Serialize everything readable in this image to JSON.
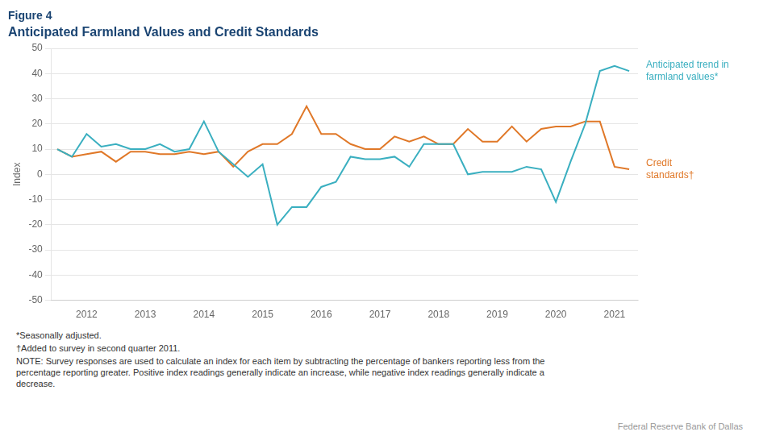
{
  "chart_data": {
    "type": "line",
    "title": "Figure 4",
    "subtitle": "Anticipated Farmland Values and Credit Standards",
    "ylabel": "Index",
    "x": [
      2011.5,
      2011.75,
      2012.0,
      2012.25,
      2012.5,
      2012.75,
      2013.0,
      2013.25,
      2013.5,
      2013.75,
      2014.0,
      2014.25,
      2014.5,
      2014.75,
      2015.0,
      2015.25,
      2015.5,
      2015.75,
      2016.0,
      2016.25,
      2016.5,
      2016.75,
      2017.0,
      2017.25,
      2017.5,
      2017.75,
      2018.0,
      2018.25,
      2018.5,
      2018.75,
      2019.0,
      2019.25,
      2019.5,
      2019.75,
      2020.0,
      2020.25,
      2020.5,
      2020.75,
      2021.0,
      2021.25
    ],
    "series": [
      {
        "color": "#3aafc0",
        "values": [
          10,
          7,
          16,
          11,
          12,
          10,
          10,
          12,
          9,
          10,
          21,
          9,
          4,
          -1,
          4,
          -20,
          -13,
          -13,
          -5,
          -3,
          7,
          6,
          6,
          7,
          3,
          12,
          12,
          12,
          0,
          1,
          1,
          1,
          3,
          2,
          -11,
          5,
          20,
          41,
          43,
          41
        ]
      },
      {
        "color": "#e07828",
        "values": [
          10,
          7,
          8,
          9,
          5,
          9,
          9,
          8,
          8,
          9,
          8,
          9,
          3,
          9,
          12,
          12,
          16,
          27,
          16,
          16,
          12,
          10,
          10,
          15,
          13,
          15,
          12,
          12,
          18,
          13,
          13,
          19,
          13,
          18,
          19,
          19,
          21,
          21,
          3,
          2
        ]
      }
    ],
    "annotations": [
      {
        "text": "Anticipated trend in\nfarmland values*",
        "color": "#3aafc0"
      },
      {
        "text": "Credit\nstandards†",
        "color": "#e07828"
      }
    ],
    "xlim": [
      2011.4,
      2021.4
    ],
    "xticks": [
      2012,
      2013,
      2014,
      2015,
      2016,
      2017,
      2018,
      2019,
      2020,
      2021
    ],
    "ylim": [
      -50,
      50
    ],
    "yticks": [
      -50,
      -40,
      -30,
      -20,
      -10,
      0,
      10,
      20,
      30,
      40,
      50
    ],
    "grid": true,
    "footnotes": [
      "*Seasonally adjusted.",
      "†Added to survey in second quarter 2011.",
      "NOTE: Survey responses are used to calculate an index for each item by subtracting the percentage of bankers reporting less from the\npercentage reporting greater. Positive index readings generally indicate an increase, while negative index readings generally indicate a\ndecrease."
    ],
    "source": "Federal Reserve Bank of Dallas"
  }
}
